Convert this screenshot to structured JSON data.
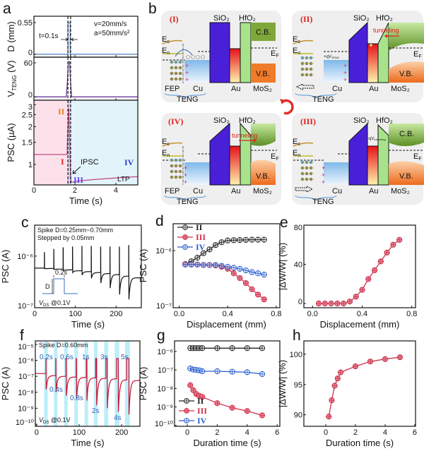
{
  "panel_letters": {
    "a": "a",
    "b": "b",
    "c": "c",
    "d": "d",
    "e": "e",
    "f": "f",
    "g": "g",
    "h": "h"
  },
  "annotations": {
    "a": {
      "velocity": "v=20mm/s",
      "acceleration": "a=50mm/s²",
      "pulse_width": "t=0.1s",
      "stage_I": "I",
      "stage_II": "II",
      "stage_III": "III",
      "stage_IV": "IV",
      "ipsc": "IPSC",
      "ltp": "LTP"
    },
    "c": {
      "spike_range": "Spike D=0.25mm~0.70mm",
      "step": "Stepped by 0.05mm",
      "width": "0.2s",
      "amplitude": "D",
      "vds_main": "V",
      "vds_sub": "DS",
      "vds_rest": " @0.1V"
    },
    "f": {
      "spike": "Spike D=0.60mm",
      "durations_top": [
        "0.2s",
        "0.6s",
        "1s",
        "3s",
        "5s"
      ],
      "durations_bottom": [
        "0.4s",
        "0.8s",
        "2s",
        "4s"
      ],
      "vds_main": "V",
      "vds_sub": "DS",
      "vds_rest": " @0.1V"
    }
  },
  "diagram_b": {
    "states": [
      "(I)",
      "(II)",
      "(III)",
      "(IV)"
    ],
    "sio2": "SiO₂",
    "hfo2": "HfO₂",
    "cb": "C.B.",
    "vb": "V.B.",
    "au": "Au",
    "mos2": "MoS₂",
    "fep": "FEP",
    "cu": "Cu",
    "teng": "TENG",
    "e": "E",
    "c_sub": "c",
    "n_sub": "n",
    "f_sub": "F",
    "tunneling": "tunneling",
    "plus_qv": "+qV",
    "teng_sub": "TENG",
    "minus_qv": "-qV",
    "tunneling_sub": "tunneling",
    "colors": {
      "sio2": "#4a1fd8",
      "hfo2": "#a8e38c",
      "cb": "#7fa83a",
      "vb": "#f07b2a",
      "cu": "#9cc8ee",
      "state_label": "#e0201c"
    }
  },
  "chart_data": [
    {
      "id": "a-displacement",
      "type": "line",
      "ylabel": "D (mm)",
      "xlim": [
        0,
        5.07
      ],
      "ylim": [
        -0.05,
        0.66
      ],
      "yticks": [
        0,
        0.55
      ],
      "ytick_labels": [
        "0",
        "0.55"
      ],
      "xticks": [
        0,
        2,
        4
      ],
      "xtick_labels": [],
      "series": [
        {
          "x": [
            0,
            1.66,
            1.66,
            1.77,
            1.77,
            5.07
          ],
          "y": [
            0,
            0,
            0.55,
            0.55,
            0,
            0
          ],
          "color": "#4a7fbf"
        }
      ]
    },
    {
      "id": "a-voltage",
      "type": "line",
      "ylabel": "V",
      "ylabel_sub": "TENG",
      "ylabel_suffix": " (V)",
      "xlim": [
        0,
        5.07
      ],
      "ylim": [
        -6,
        70
      ],
      "yticks": [
        0,
        60
      ],
      "ytick_labels": [
        "0",
        "60"
      ],
      "xticks": [
        0,
        2,
        4
      ],
      "xtick_labels": [],
      "series": [
        {
          "x": [
            0,
            1.58,
            1.63,
            1.68,
            1.74,
            1.79,
            1.84,
            5.07
          ],
          "y": [
            0,
            0,
            25,
            62,
            62,
            25,
            0,
            0
          ],
          "color": "#6a3d9a"
        }
      ]
    },
    {
      "id": "a-psc",
      "type": "line",
      "ylabel": "PSC (µA)",
      "xlabel": "Time (s)",
      "xlim": [
        0,
        5.07
      ],
      "ylim": [
        0.687,
        3.25
      ],
      "yscale": "log",
      "yticks": [
        1,
        1.5,
        2,
        2.5,
        3
      ],
      "ytick_labels": [
        "1",
        "1.5",
        "2",
        "2.5",
        "3"
      ],
      "xticks": [
        0,
        2,
        4
      ],
      "xtick_labels": [
        "0",
        "2",
        "4"
      ],
      "shaded_regions": [
        {
          "from": 0,
          "to": 1.66,
          "color": "#fde1ea"
        },
        {
          "from": 1.66,
          "to": 1.79,
          "color": "#d9d2f7"
        },
        {
          "from": 1.79,
          "to": 5.07,
          "color": "#e2f4fa"
        }
      ],
      "markers_x": [
        1.66,
        1.79
      ],
      "series": [
        {
          "x": [
            0,
            1.62,
            1.64,
            1.7,
            1.73,
            1.8,
            1.83,
            2.2,
            3,
            4,
            5.07
          ],
          "y": [
            1.2,
            1.2,
            1.75,
            2.8,
            1.75,
            0.76,
            0.72,
            0.74,
            0.76,
            0.78,
            0.8
          ],
          "color": "#c0508a"
        }
      ]
    },
    {
      "id": "c",
      "type": "line",
      "ylabel": "PSC (A)",
      "xlabel": "Time (s)",
      "xlim": [
        0,
        262
      ],
      "ylim": [
        1e-07,
        3.98e-06
      ],
      "yscale": "log",
      "yticks": [
        1e-07,
        1e-06
      ],
      "ytick_labels": [
        "10⁻⁷",
        "10⁻⁶"
      ],
      "xticks": [
        0,
        100,
        200
      ],
      "xtick_labels": [
        "0",
        "100",
        "200"
      ],
      "spikes": {
        "time": [
          24,
          47,
          70,
          93,
          116,
          139,
          162,
          185,
          208,
          231
        ],
        "peak": [
          1.17e-06,
          1.35e-06,
          1.45e-06,
          1.5e-06,
          1.55e-06,
          1.55e-06,
          1.5e-06,
          1.5e-06,
          1.5e-06,
          1.6e-06
        ],
        "dip": [
          5.7e-07,
          5.5e-07,
          5.2e-07,
          4.8e-07,
          4.3e-07,
          3.7e-07,
          3e-07,
          2.4e-07,
          1.8e-07,
          1.45e-07
        ],
        "baseline_after": [
          5.75e-07,
          5.6e-07,
          5.4e-07,
          5.2e-07,
          5e-07,
          4.8e-07,
          4.6e-07,
          4.4e-07,
          4.1e-07,
          3.8e-07
        ],
        "initial_baseline": 5.85e-07,
        "color": "#111111"
      }
    },
    {
      "id": "d",
      "type": "line",
      "ylabel": "PSC (A)",
      "xlabel": "Displacement (mm)",
      "xlim": [
        -0.05,
        0.83
      ],
      "ylim": [
        1e-07,
        2.95e-06
      ],
      "yscale": "log",
      "yticks": [
        1e-07,
        1e-06
      ],
      "ytick_labels": [
        "10⁻⁷",
        "10⁻⁶"
      ],
      "xticks": [
        0,
        0.4,
        0.8
      ],
      "xtick_labels": [
        "0.0",
        "0.4",
        "0.8"
      ],
      "legend": "top-left",
      "x": [
        0.05,
        0.1,
        0.15,
        0.2,
        0.25,
        0.3,
        0.35,
        0.4,
        0.45,
        0.5,
        0.55,
        0.6,
        0.65,
        0.7
      ],
      "series": [
        {
          "name": "II",
          "color": "#222222",
          "fill": "none",
          "values": [
            5.8e-07,
            6.5e-07,
            7.5e-07,
            9e-07,
            1.05e-06,
            1.25e-06,
            1.4e-06,
            1.5e-06,
            1.52e-06,
            1.53e-06,
            1.54e-06,
            1.55e-06,
            1.55e-06,
            1.55e-06
          ]
        },
        {
          "name": "III",
          "color": "#d0304a",
          "fill": "#e98a9a",
          "values": [
            5.8e-07,
            5.7e-07,
            5.7e-07,
            5.6e-07,
            5.6e-07,
            5.5e-07,
            5.2e-07,
            4.8e-07,
            4e-07,
            3.3e-07,
            2.7e-07,
            2.1e-07,
            1.7e-07,
            1.4e-07
          ]
        },
        {
          "name": "IV",
          "color": "#2a5fd0",
          "fill": "none",
          "values": [
            5.7e-07,
            5.7e-07,
            5.7e-07,
            5.6e-07,
            5.6e-07,
            5.6e-07,
            5.4e-07,
            5.2e-07,
            5e-07,
            4.8e-07,
            4.5e-07,
            4.2e-07,
            4e-07,
            3.8e-07
          ]
        }
      ]
    },
    {
      "id": "e",
      "type": "line",
      "ylabel": "|ΔW/W| (%)",
      "xlabel": "Displacement (mm)",
      "xlim": [
        -0.07,
        0.83
      ],
      "ylim": [
        -4.3,
        80
      ],
      "yticks": [
        0,
        40,
        80
      ],
      "ytick_labels": [
        "0",
        "40",
        "80"
      ],
      "xticks": [
        0,
        0.4,
        0.8
      ],
      "xtick_labels": [
        "0.0",
        "0.4",
        "0.8"
      ],
      "x": [
        0.05,
        0.1,
        0.15,
        0.2,
        0.25,
        0.3,
        0.35,
        0.4,
        0.45,
        0.5,
        0.55,
        0.6,
        0.65,
        0.7
      ],
      "series": [
        {
          "color": "#c8324a",
          "fill": "#e98a9a",
          "values": [
            0,
            0,
            0,
            0,
            0,
            2,
            7,
            14,
            25,
            34,
            43,
            52,
            60,
            65
          ]
        }
      ]
    },
    {
      "id": "f",
      "type": "line",
      "ylabel": "PSC (A)",
      "xlabel": "Time (s)",
      "xlim": [
        -3,
        243
      ],
      "ylim": [
        7.4e-11,
        1.66e-05
      ],
      "yscale": "log",
      "yticks": [
        1e-10,
        1e-09,
        1e-08,
        1e-07,
        1e-06,
        1e-05
      ],
      "ytick_labels": [
        "10⁻¹⁰",
        "10⁻⁹",
        "10⁻⁸",
        "10⁻⁷",
        "10⁻⁶",
        "10⁻⁵"
      ],
      "xticks": [
        0,
        100,
        200
      ],
      "xtick_labels": [
        "0",
        "100",
        "200"
      ],
      "spikes": {
        "time": [
          22,
          45,
          69,
          93,
          117,
          139,
          163,
          188,
          212
        ],
        "duration": [
          0.2,
          0.4,
          0.6,
          0.8,
          1,
          2,
          3,
          4,
          5
        ],
        "peak": [
          1.3e-06,
          1.3e-06,
          1.3e-06,
          1.3e-06,
          1.3e-06,
          1.3e-06,
          1.3e-06,
          1.3e-06,
          1.3e-06
        ],
        "dip": [
          1.5e-08,
          1e-08,
          6e-09,
          4e-09,
          3e-09,
          1.5e-09,
          1e-09,
          6e-10,
          4e-10
        ],
        "baseline_after": [
          1.1e-07,
          1e-07,
          9e-08,
          8.5e-08,
          8e-08,
          7.5e-08,
          7e-08,
          6e-08,
          5.5e-08
        ],
        "initial_baseline": 1.5e-07,
        "color": "#c8102e",
        "band_color": "#bdeefa"
      }
    },
    {
      "id": "g",
      "type": "line",
      "ylabel": "PSC (A)",
      "xlabel": "Duration time (s)",
      "xlim": [
        -0.85,
        6.18
      ],
      "ylim": [
        9e-11,
        3.7e-06
      ],
      "yscale": "log",
      "yticks": [
        1e-10,
        1e-09,
        1e-08,
        1e-07,
        1e-06
      ],
      "ytick_labels": [
        "10⁻¹⁰",
        "10⁻⁹",
        "10⁻⁸",
        "10⁻⁷",
        "10⁻⁶"
      ],
      "xticks": [
        0,
        2,
        4,
        6
      ],
      "xtick_labels": [
        "0",
        "2",
        "4",
        "6"
      ],
      "legend": "bottom-left",
      "x": [
        0.2,
        0.4,
        0.6,
        0.8,
        1,
        2,
        3,
        4,
        5
      ],
      "series": [
        {
          "name": "II",
          "color": "#222222",
          "fill": "none",
          "values": [
            1.5e-06,
            1.5e-06,
            1.5e-06,
            1.5e-06,
            1.5e-06,
            1.5e-06,
            1.5e-06,
            1.5e-06,
            1.5e-06
          ]
        },
        {
          "name": "III",
          "color": "#d0304a",
          "fill": "#e98a9a",
          "values": [
            1.5e-08,
            8e-09,
            5e-09,
            4e-09,
            3.5e-09,
            1.6e-09,
            9e-10,
            6e-10,
            3.5e-10
          ]
        },
        {
          "name": "IV",
          "color": "#2a5fd0",
          "fill": "none",
          "values": [
            1.2e-07,
            1.05e-07,
            1e-07,
            9.5e-08,
            8.5e-08,
            8.5e-08,
            8e-08,
            7.5e-08,
            6e-08
          ]
        }
      ]
    },
    {
      "id": "h",
      "type": "line",
      "ylabel": "|ΔW/W| (%)",
      "xlabel": "Duration time (s)",
      "xlim": [
        -1.48,
        6.05
      ],
      "ylim": [
        88.1,
        102.2
      ],
      "yticks": [
        90,
        95,
        100
      ],
      "ytick_labels": [
        "90",
        "95",
        "100"
      ],
      "xticks": [
        0,
        2,
        4,
        6
      ],
      "xtick_labels": [
        "0",
        "2",
        "4",
        "6"
      ],
      "x": [
        0.2,
        0.4,
        0.6,
        0.8,
        1,
        2,
        3,
        4,
        5
      ],
      "series": [
        {
          "color": "#c8324a",
          "fill": "#e98a9a",
          "values": [
            89.7,
            92.4,
            94.8,
            96,
            97,
            98,
            98.8,
            99.2,
            99.5
          ]
        }
      ]
    }
  ]
}
